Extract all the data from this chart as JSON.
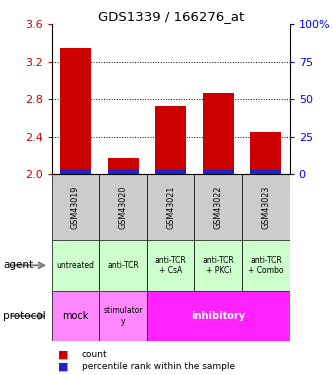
{
  "title": "GDS1339 / 166276_at",
  "samples": [
    "GSM43019",
    "GSM43020",
    "GSM43021",
    "GSM43022",
    "GSM43023"
  ],
  "count_values": [
    3.35,
    2.18,
    2.73,
    2.87,
    2.45
  ],
  "bar_base": 2.0,
  "ylim_left": [
    2.0,
    3.6
  ],
  "ylim_right": [
    0,
    100
  ],
  "yticks_left": [
    2.0,
    2.4,
    2.8,
    3.2,
    3.6
  ],
  "yticks_right": [
    0,
    25,
    50,
    75,
    100
  ],
  "bar_color_red": "#cc0000",
  "bar_color_blue": "#2222cc",
  "agent_labels": [
    "untreated",
    "anti-TCR",
    "anti-TCR\n+ CsA",
    "anti-TCR\n+ PKCi",
    "anti-TCR\n+ Combo"
  ],
  "agent_bg_color": "#ccffcc",
  "protocol_mock_color": "#ff88ff",
  "protocol_stim_color": "#ff88ff",
  "protocol_inhib_color": "#ff22ff",
  "sample_bg_color": "#cccccc",
  "legend_count_color": "#cc0000",
  "legend_pct_color": "#2222cc",
  "dotted_lines": [
    2.4,
    2.8,
    3.2
  ],
  "blue_bar_height": 0.055,
  "right_tick_labels": [
    "0",
    "25",
    "50",
    "75",
    "100%"
  ]
}
